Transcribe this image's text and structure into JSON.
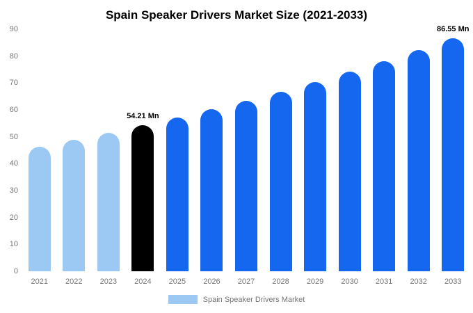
{
  "title": "Spain Speaker Drivers Market Size (2021-2033)",
  "legend": {
    "label": "Spain Speaker Drivers Market",
    "swatch_color": "#9CC9F4"
  },
  "colors": {
    "light_blue": "#9CC9F4",
    "highlight_black": "#000000",
    "blue": "#1567F0",
    "axis_text": "#757575",
    "title_text": "#000000",
    "background": "#FFFFFF"
  },
  "chart_data": {
    "type": "bar",
    "title": "Spain Speaker Drivers Market Size (2021-2033)",
    "categories": [
      "2021",
      "2022",
      "2023",
      "2024",
      "2025",
      "2026",
      "2027",
      "2028",
      "2029",
      "2030",
      "2031",
      "2032",
      "2033"
    ],
    "values": [
      46.4,
      48.9,
      51.5,
      54.21,
      57.1,
      60.2,
      63.4,
      66.8,
      70.3,
      74.1,
      78.0,
      82.2,
      86.55
    ],
    "bar_colors": [
      "#9CC9F4",
      "#9CC9F4",
      "#9CC9F4",
      "#000000",
      "#1567F0",
      "#1567F0",
      "#1567F0",
      "#1567F0",
      "#1567F0",
      "#1567F0",
      "#1567F0",
      "#1567F0",
      "#1567F0"
    ],
    "data_labels": [
      {
        "category": "2024",
        "text": "54.21 Mn"
      },
      {
        "category": "2033",
        "text": "86.55 Mn"
      }
    ],
    "xlabel": "",
    "ylabel": "",
    "ylim": [
      0,
      90
    ],
    "yticks": [
      0,
      10,
      20,
      30,
      40,
      50,
      60,
      70,
      80,
      90
    ],
    "grid": false,
    "legend_position": "bottom",
    "legend_entries": [
      "Spain Speaker Drivers Market"
    ],
    "units": "Mn"
  }
}
